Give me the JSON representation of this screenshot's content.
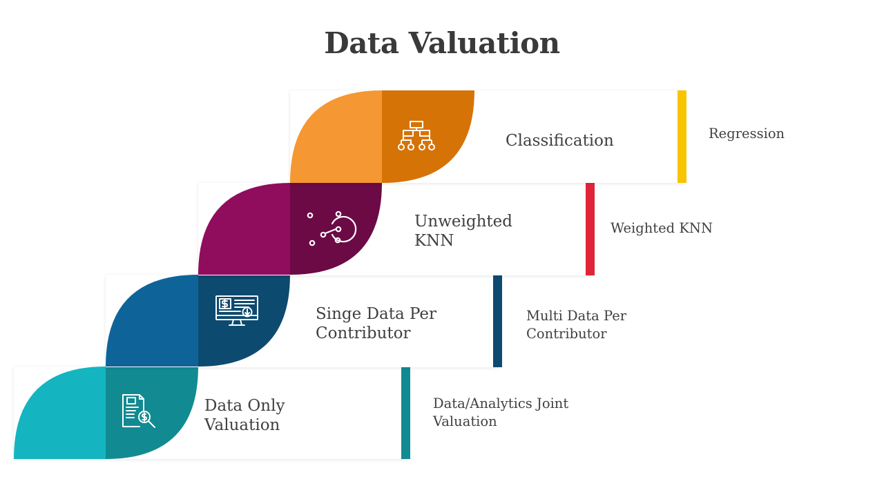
{
  "title": "Data Valuation",
  "steps": [
    {
      "label": "Data Only\nValuation",
      "alt": "Data/Analytics Joint\nValuation",
      "light": "#14b5c0",
      "dark": "#128a92",
      "bar": "#128a92",
      "icon": "document-dollar-search-icon"
    },
    {
      "label": "Singe Data Per\nContributor",
      "alt": "Multi Data Per\nContributor",
      "light": "#0e6499",
      "dark": "#0d4a70",
      "bar": "#0d4a70",
      "icon": "monitor-dollar-download-icon"
    },
    {
      "label": "Unweighted\nKNN",
      "alt": "Weighted KNN",
      "light": "#900c5d",
      "dark": "#6c0a46",
      "bar": "#e0253b",
      "icon": "knn-nodes-icon"
    },
    {
      "label": "Classification",
      "alt": "Regression",
      "light": "#f59733",
      "dark": "#d67306",
      "bar": "#f8c400",
      "icon": "hierarchy-tree-icon"
    }
  ]
}
